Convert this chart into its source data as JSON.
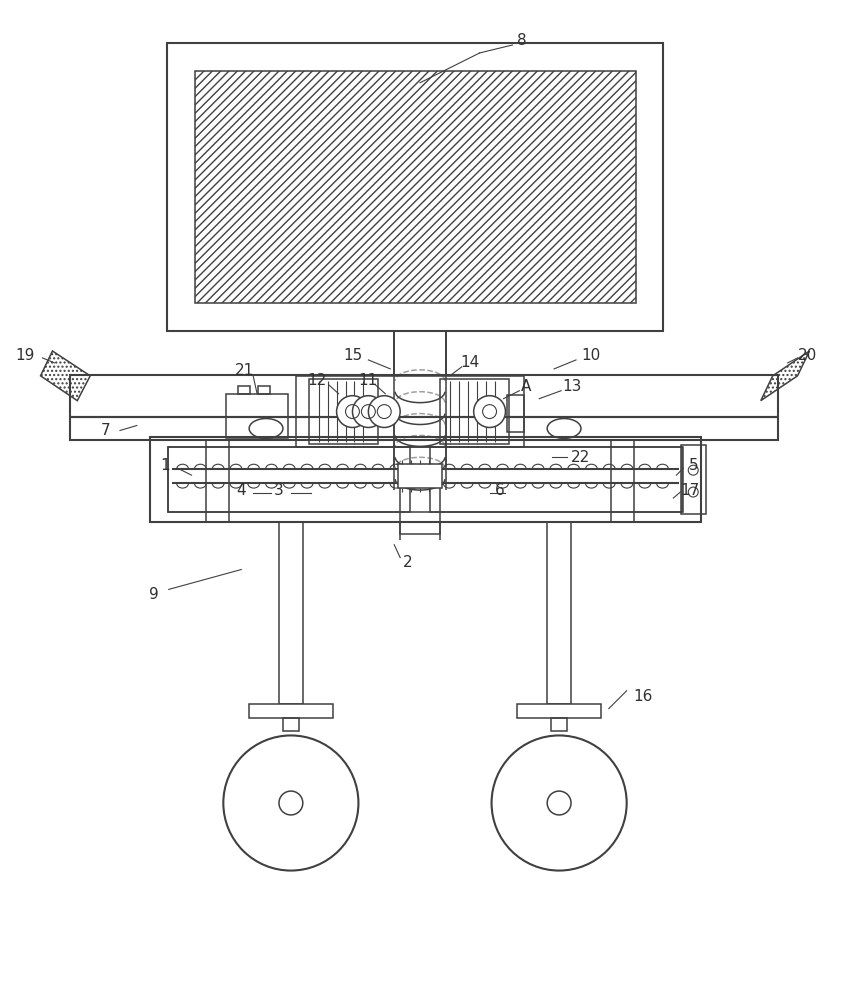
{
  "bg_color": "#ffffff",
  "line_color": "#404040",
  "label_color": "#303030",
  "figsize": [
    8.5,
    10.0
  ],
  "dpi": 100
}
